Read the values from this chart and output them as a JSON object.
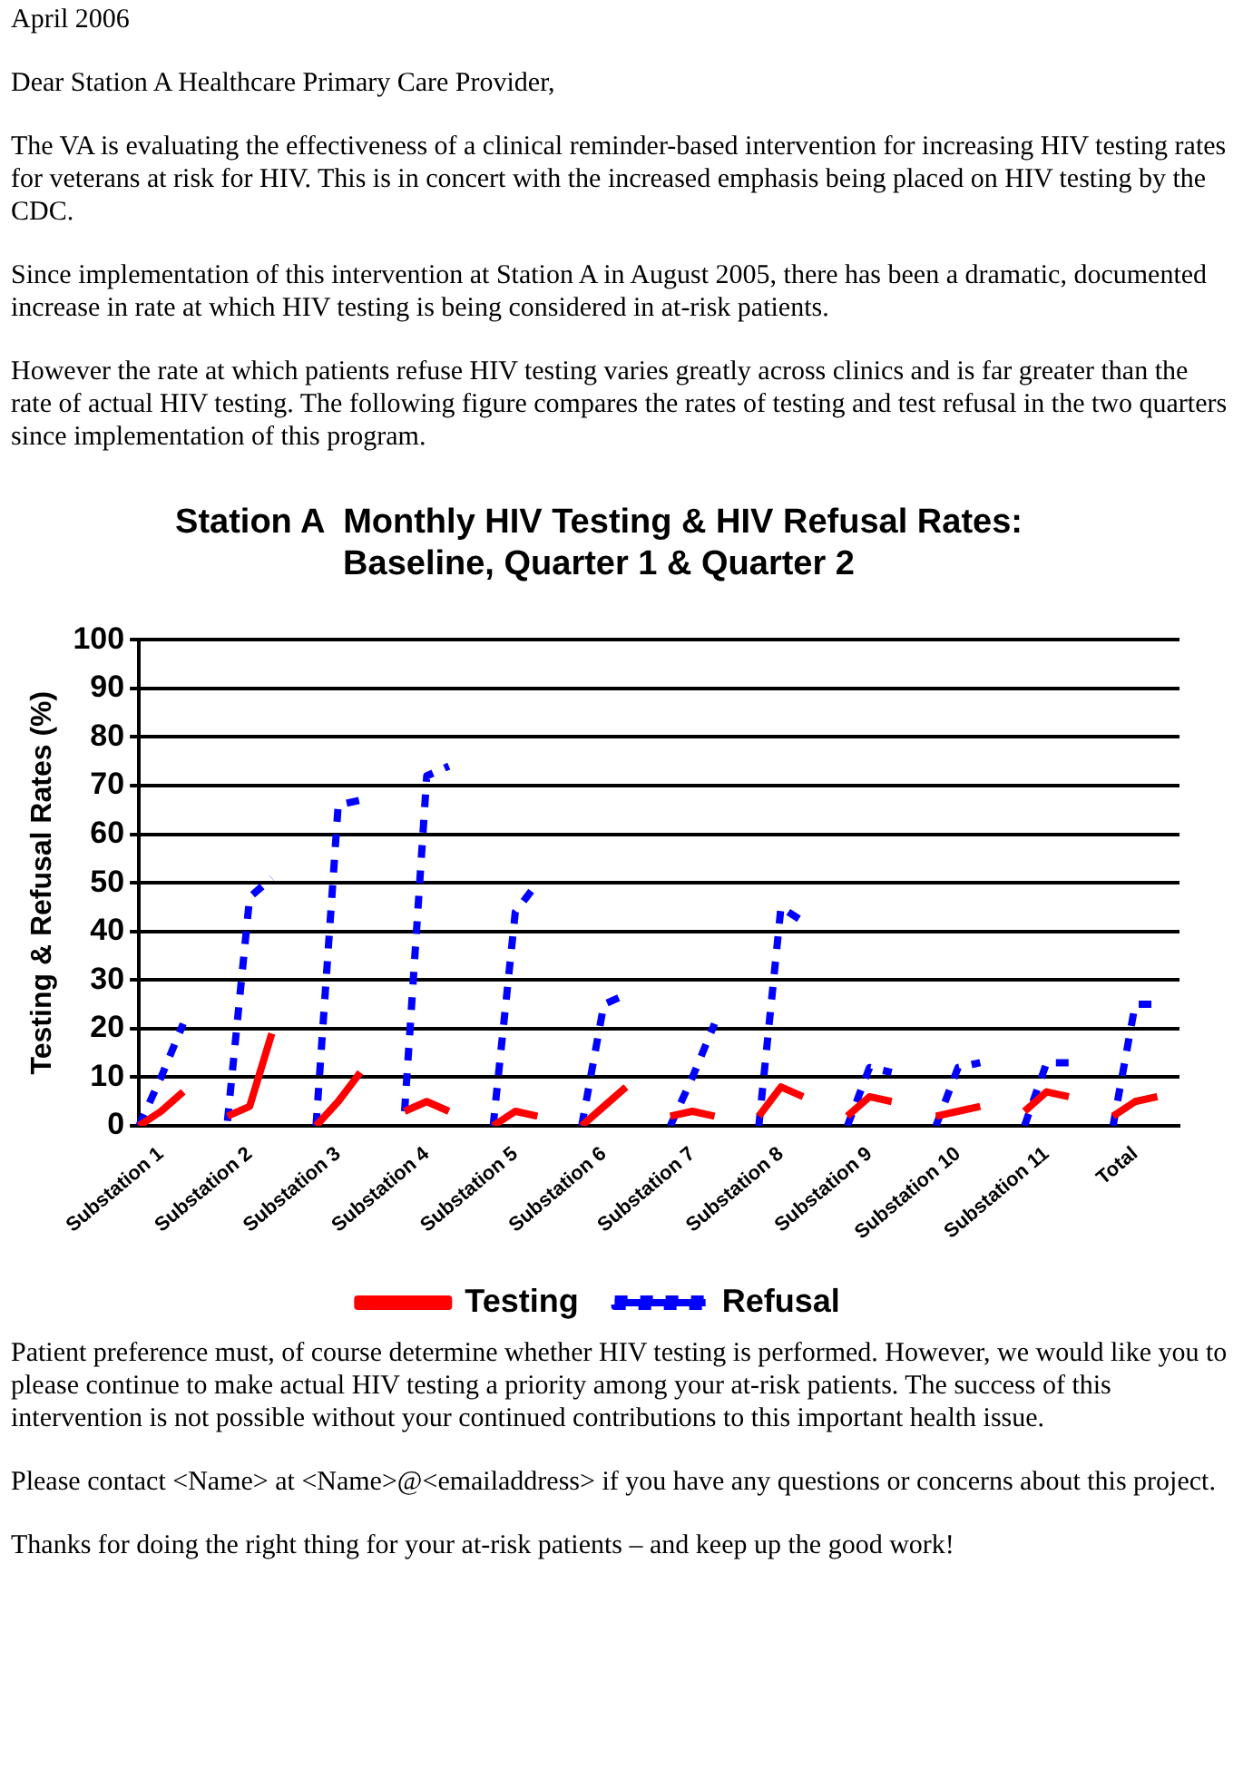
{
  "chart_data": {
    "type": "line",
    "title": "Station A  Monthly HIV Testing & HIV Refusal Rates: Baseline, Quarter 1 & Quarter 2",
    "ylabel": "Testing & Refusal Rates (%)",
    "categories": [
      null,
      "Substation 1",
      null,
      null,
      null,
      "Substation 2",
      null,
      null,
      null,
      "Substation 3",
      null,
      null,
      null,
      "Substation 4",
      null,
      null,
      null,
      "Substation 5",
      null,
      null,
      null,
      "Substation 6",
      null,
      null,
      null,
      "Substation 7",
      null,
      null,
      null,
      "Substation 8",
      null,
      null,
      null,
      "Substation 9",
      null,
      null,
      null,
      "Substation 10",
      null,
      null,
      null,
      "Substation 11",
      null,
      null,
      null,
      "Total",
      null,
      null
    ],
    "series": [
      {
        "name": "Testing",
        "color": "#ff0000",
        "line_style": "solid",
        "values": [
          0,
          3,
          7,
          null,
          2,
          4,
          19,
          null,
          0,
          5,
          11,
          null,
          3,
          5,
          3,
          null,
          0,
          3,
          2,
          null,
          0,
          4,
          8,
          null,
          2,
          3,
          2,
          null,
          2,
          8,
          6,
          null,
          2,
          6,
          5,
          null,
          2,
          3,
          4,
          null,
          3,
          7,
          6,
          null,
          2,
          5,
          6,
          null
        ]
      },
      {
        "name": "Refusal",
        "color": "#0000ff",
        "line_style": "dashed",
        "values": [
          0,
          10,
          21,
          null,
          1,
          47,
          51,
          null,
          0,
          66,
          67,
          null,
          3,
          72,
          74,
          null,
          0,
          44,
          50,
          null,
          0,
          25,
          27,
          null,
          0,
          10,
          21,
          null,
          0,
          45,
          42,
          null,
          0,
          12,
          11,
          null,
          0,
          12,
          13,
          null,
          0,
          13,
          13,
          null,
          0,
          25,
          25,
          null
        ]
      }
    ],
    "ylim": [
      0,
      100
    ],
    "yticks": [
      0,
      10,
      20,
      30,
      40,
      50,
      60,
      70,
      80,
      90,
      100
    ],
    "grid": "y",
    "legend": "bottom",
    "marker": "none",
    "annotations": [
      "April 2006",
      "Dear Station A Healthcare Primary Care Provider,",
      "The VA is evaluating the effectiveness of a clinical reminder-based intervention for increasing HIV testing rates for veterans at risk for HIV.  This is in concert with the increased emphasis being placed on HIV testing by the CDC.",
      "Since implementation of this intervention at Station A in August 2005, there has been a dramatic, documented increase in rate at which HIV testing is being considered in at-risk patients.",
      "However the rate at which patients refuse HIV testing varies greatly across clinics and is far greater than the rate of actual HIV testing.  The following figure compares the rates of testing and test refusal in the two quarters since implementation of this program.",
      "Patient preference must, of course determine whether HIV testing is performed.  However, we would like you to please continue to make actual HIV testing a priority among your at-risk patients.  The success of this intervention is not possible without your continued contributions to this important health issue.",
      "Please contact <Name> at <Name>@<emailaddress> if you have any questions or concerns about this project.",
      "Thanks for doing the right thing for your at-risk patients – and keep up the good work!"
    ]
  }
}
